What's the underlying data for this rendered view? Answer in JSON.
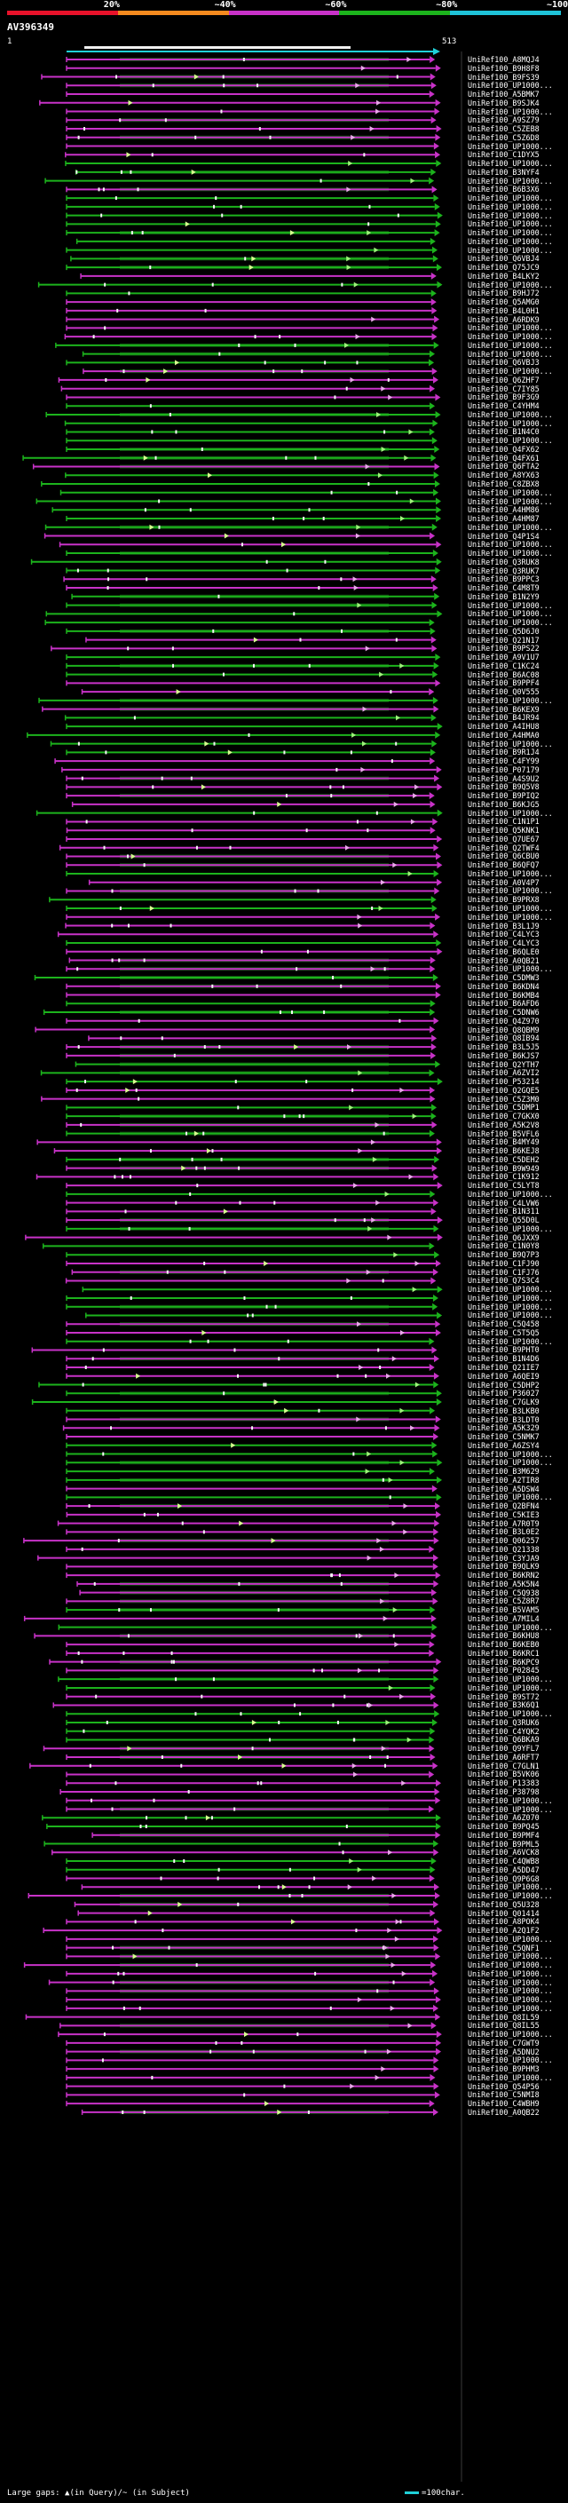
{
  "legend": {
    "segments": [
      {
        "label": "20%",
        "color": "#e8122a"
      },
      {
        "label": "~40%",
        "color": "#f58a1f"
      },
      {
        "label": "~60%",
        "color": "#c832c8"
      },
      {
        "label": "~80%",
        "color": "#1cb31c"
      },
      {
        "label": "~100%",
        "color": "#1fc3d8"
      }
    ]
  },
  "query": {
    "title": "AV396349",
    "start": "1",
    "end": "513"
  },
  "hits": [
    {
      "label": "UniRef100_A8MQJ4",
      "c": "m"
    },
    {
      "label": "UniRef100_B9H8F8",
      "c": "m"
    },
    {
      "label": "UniRef100_B9FS39",
      "c": "m"
    },
    {
      "label": "UniRef100_UP1000...",
      "c": "m"
    },
    {
      "label": "UniRef100_A5BMK7",
      "c": "m"
    },
    {
      "label": "UniRef100_B9SJK4",
      "c": "m"
    },
    {
      "label": "UniRef100_UP1000...",
      "c": "m"
    },
    {
      "label": "UniRef100_A9SZ79",
      "c": "m"
    },
    {
      "label": "UniRef100_C5ZEB8",
      "c": "m"
    },
    {
      "label": "UniRef100_C5Z6D8",
      "c": "m"
    },
    {
      "label": "UniRef100_UP1000...",
      "c": "m"
    },
    {
      "label": "UniRef100_C1DYX5",
      "c": "m"
    },
    {
      "label": "UniRef100_UP1000...",
      "c": "g"
    },
    {
      "label": "UniRef100_B3NYF4",
      "c": "g"
    },
    {
      "label": "UniRef100_UP1000...",
      "c": "g"
    },
    {
      "label": "UniRef100_B6B3X6",
      "c": "m"
    },
    {
      "label": "UniRef100_UP1000...",
      "c": "g"
    },
    {
      "label": "UniRef100_UP1000...",
      "c": "g"
    },
    {
      "label": "UniRef100_UP1000...",
      "c": "g"
    },
    {
      "label": "UniRef100_UP1000...",
      "c": "g"
    },
    {
      "label": "UniRef100_UP1000...",
      "c": "g"
    },
    {
      "label": "UniRef100_UP1000...",
      "c": "g"
    },
    {
      "label": "UniRef100_UP1000...",
      "c": "g"
    },
    {
      "label": "UniRef100_Q6VBJ4",
      "c": "g"
    },
    {
      "label": "UniRef100_Q75JC9",
      "c": "g"
    },
    {
      "label": "UniRef100_B4LKY2",
      "c": "m"
    },
    {
      "label": "UniRef100_UP1000...",
      "c": "g"
    },
    {
      "label": "UniRef100_B9HJ72",
      "c": "g"
    },
    {
      "label": "UniRef100_Q5AMG0",
      "c": "m"
    },
    {
      "label": "UniRef100_B4L0H1",
      "c": "m"
    },
    {
      "label": "UniRef100_A6RDK9",
      "c": "m"
    },
    {
      "label": "UniRef100_UP1000...",
      "c": "m"
    },
    {
      "label": "UniRef100_UP1000...",
      "c": "m"
    },
    {
      "label": "UniRef100_UP1000...",
      "c": "g"
    },
    {
      "label": "UniRef100_UP1000...",
      "c": "g"
    },
    {
      "label": "UniRef100_Q6VBJ3",
      "c": "g"
    },
    {
      "label": "UniRef100_UP1000...",
      "c": "m"
    },
    {
      "label": "UniRef100_Q6ZHF7",
      "c": "m"
    },
    {
      "label": "UniRef100_C7IY85",
      "c": "m"
    },
    {
      "label": "UniRef100_B9F3G9",
      "c": "m"
    },
    {
      "label": "UniRef100_C4YHM4",
      "c": "g"
    },
    {
      "label": "UniRef100_UP1000...",
      "c": "g"
    },
    {
      "label": "UniRef100_UP1000...",
      "c": "g"
    },
    {
      "label": "UniRef100_B1N4C0",
      "c": "g"
    },
    {
      "label": "UniRef100_UP1000...",
      "c": "g"
    },
    {
      "label": "UniRef100_Q4FX62",
      "c": "g"
    },
    {
      "label": "UniRef100_Q4FX61",
      "c": "g"
    },
    {
      "label": "UniRef100_Q6FTA2",
      "c": "m"
    },
    {
      "label": "UniRef100_A8YX63",
      "c": "g"
    },
    {
      "label": "UniRef100_C8ZBX8",
      "c": "g"
    },
    {
      "label": "UniRef100_UP1000...",
      "c": "g"
    },
    {
      "label": "UniRef100_UP1000...",
      "c": "g"
    },
    {
      "label": "UniRef100_A4HM86",
      "c": "g"
    },
    {
      "label": "UniRef100_A4HM87",
      "c": "g"
    },
    {
      "label": "UniRef100_UP1000...",
      "c": "g"
    },
    {
      "label": "UniRef100_Q4P1S4",
      "c": "m"
    },
    {
      "label": "UniRef100_UP1000...",
      "c": "m"
    },
    {
      "label": "UniRef100_UP1000...",
      "c": "g"
    },
    {
      "label": "UniRef100_Q3RUK8",
      "c": "g"
    },
    {
      "label": "UniRef100_Q3RUK7",
      "c": "g"
    },
    {
      "label": "UniRef100_B9PPC3",
      "c": "m"
    },
    {
      "label": "UniRef100_C4M8T9",
      "c": "m"
    },
    {
      "label": "UniRef100_B1N2Y9",
      "c": "g"
    },
    {
      "label": "UniRef100_UP1000...",
      "c": "g"
    },
    {
      "label": "UniRef100_UP1000...",
      "c": "g"
    },
    {
      "label": "UniRef100_UP1000...",
      "c": "g"
    },
    {
      "label": "UniRef100_Q5D6J0",
      "c": "g"
    },
    {
      "label": "UniRef100_Q21N17",
      "c": "m"
    },
    {
      "label": "UniRef100_B9PS22",
      "c": "m"
    },
    {
      "label": "UniRef100_A9V1U7",
      "c": "g"
    },
    {
      "label": "UniRef100_C1KC24",
      "c": "g"
    },
    {
      "label": "UniRef100_B6AC08",
      "c": "g"
    },
    {
      "label": "UniRef100_B9PPF4",
      "c": "m"
    },
    {
      "label": "UniRef100_Q0V555",
      "c": "m"
    },
    {
      "label": "UniRef100_UP1000...",
      "c": "g"
    },
    {
      "label": "UniRef100_B6KEX9",
      "c": "m"
    },
    {
      "label": "UniRef100_B4JR94",
      "c": "g"
    },
    {
      "label": "UniRef100_A4IHU8",
      "c": "g"
    },
    {
      "label": "UniRef100_A4HMA0",
      "c": "g"
    },
    {
      "label": "UniRef100_UP1000...",
      "c": "g"
    },
    {
      "label": "UniRef100_B9R1J4",
      "c": "g"
    },
    {
      "label": "UniRef100_C4FY99",
      "c": "m"
    },
    {
      "label": "UniRef100_P07179",
      "c": "m"
    },
    {
      "label": "UniRef100_A4S9U2",
      "c": "m"
    },
    {
      "label": "UniRef100_B9Q5V8",
      "c": "m"
    },
    {
      "label": "UniRef100_B9PIQ2",
      "c": "m"
    },
    {
      "label": "UniRef100_B6KJG5",
      "c": "m"
    },
    {
      "label": "UniRef100_UP1000...",
      "c": "g"
    },
    {
      "label": "UniRef100_C1N1P1",
      "c": "m"
    },
    {
      "label": "UniRef100_Q5KNK1",
      "c": "m"
    },
    {
      "label": "UniRef100_Q7UE67",
      "c": "m"
    },
    {
      "label": "UniRef100_Q2TWF4",
      "c": "m"
    },
    {
      "label": "UniRef100_Q6CBU0",
      "c": "m"
    },
    {
      "label": "UniRef100_B6QFQ7",
      "c": "m"
    },
    {
      "label": "UniRef100_UP1000...",
      "c": "g"
    },
    {
      "label": "UniRef100_A0V4P7",
      "c": "m"
    },
    {
      "label": "UniRef100_UP1000...",
      "c": "m"
    },
    {
      "label": "UniRef100_B9PRX8",
      "c": "g"
    },
    {
      "label": "UniRef100_UP1000...",
      "c": "g"
    },
    {
      "label": "UniRef100_UP1000...",
      "c": "m"
    },
    {
      "label": "UniRef100_B3L1J9",
      "c": "m"
    },
    {
      "label": "UniRef100_C4LYC3",
      "c": "m"
    },
    {
      "label": "UniRef100_C4LYC3",
      "c": "g"
    },
    {
      "label": "UniRef100_B6QLE0",
      "c": "m"
    },
    {
      "label": "UniRef100_A0QB21",
      "c": "m"
    },
    {
      "label": "UniRef100_UP1000...",
      "c": "m"
    },
    {
      "label": "UniRef100_C5DMW3",
      "c": "g"
    },
    {
      "label": "UniRef100_B6KDN4",
      "c": "m"
    },
    {
      "label": "UniRef100_B6KMB4",
      "c": "m"
    },
    {
      "label": "UniRef100_B6AFD6",
      "c": "g"
    },
    {
      "label": "UniRef100_C5DNW6",
      "c": "g"
    },
    {
      "label": "UniRef100_Q4Z970",
      "c": "m"
    },
    {
      "label": "UniRef100_Q8QBM9",
      "c": "m"
    },
    {
      "label": "UniRef100_Q8IB94",
      "c": "m"
    },
    {
      "label": "UniRef100_B3L5J5",
      "c": "m"
    },
    {
      "label": "UniRef100_B6KJS7",
      "c": "m"
    },
    {
      "label": "UniRef100_Q2YTH7",
      "c": "g"
    },
    {
      "label": "UniRef100_A6ZVI2",
      "c": "g"
    },
    {
      "label": "UniRef100_P53214",
      "c": "g"
    },
    {
      "label": "UniRef100_Q2GQE5",
      "c": "m"
    },
    {
      "label": "UniRef100_C5Z3M0",
      "c": "m"
    },
    {
      "label": "UniRef100_C5DMP1",
      "c": "g"
    },
    {
      "label": "UniRef100_C7GKX0",
      "c": "g"
    },
    {
      "label": "UniRef100_A5K2V8",
      "c": "m"
    },
    {
      "label": "UniRef100_B5VFL6",
      "c": "g"
    },
    {
      "label": "UniRef100_B4MY49",
      "c": "m"
    },
    {
      "label": "UniRef100_B6KEJ8",
      "c": "m"
    },
    {
      "label": "UniRef100_C5DEH2",
      "c": "g"
    },
    {
      "label": "UniRef100_B9W949",
      "c": "m"
    },
    {
      "label": "UniRef100_C1K912",
      "c": "m"
    },
    {
      "label": "UniRef100_C5LYT8",
      "c": "m"
    },
    {
      "label": "UniRef100_UP1000...",
      "c": "g"
    },
    {
      "label": "UniRef100_C4LVW6",
      "c": "m"
    },
    {
      "label": "UniRef100_B1N311",
      "c": "m"
    },
    {
      "label": "UniRef100_Q55D0L",
      "c": "m"
    },
    {
      "label": "UniRef100_UP1000...",
      "c": "g"
    },
    {
      "label": "UniRef100_Q6JXX9",
      "c": "m"
    },
    {
      "label": "UniRef100_C1N0Y8",
      "c": "g"
    },
    {
      "label": "UniRef100_B9Q7P3",
      "c": "g"
    },
    {
      "label": "UniRef100_C1FJ90",
      "c": "m"
    },
    {
      "label": "UniRef100_C1FJ76",
      "c": "m"
    },
    {
      "label": "UniRef100_Q7S3C4",
      "c": "m"
    },
    {
      "label": "UniRef100_UP1000...",
      "c": "g"
    },
    {
      "label": "UniRef100_UP1000...",
      "c": "g"
    },
    {
      "label": "UniRef100_UP1000...",
      "c": "g"
    },
    {
      "label": "UniRef100_UP1000...",
      "c": "g"
    },
    {
      "label": "UniRef100_C5Q458",
      "c": "m"
    },
    {
      "label": "UniRef100_C5T5Q5",
      "c": "m"
    },
    {
      "label": "UniRef100_UP1000...",
      "c": "g"
    },
    {
      "label": "UniRef100_B9PHT0",
      "c": "m"
    },
    {
      "label": "UniRef100_B1N4D6",
      "c": "m"
    },
    {
      "label": "UniRef100_Q21IE7",
      "c": "m"
    },
    {
      "label": "UniRef100_A6QEI9",
      "c": "m"
    },
    {
      "label": "UniRef100_C5DHP2",
      "c": "g"
    },
    {
      "label": "UniRef100_P36027",
      "c": "g"
    },
    {
      "label": "UniRef100_C7GLK9",
      "c": "g"
    },
    {
      "label": "UniRef100_B3LKB0",
      "c": "g"
    },
    {
      "label": "UniRef100_B3LDT0",
      "c": "m"
    },
    {
      "label": "UniRef100_A5K329",
      "c": "m"
    },
    {
      "label": "UniRef100_C5NMK7",
      "c": "m"
    },
    {
      "label": "UniRef100_A6ZSY4",
      "c": "g"
    },
    {
      "label": "UniRef100_UP1000...",
      "c": "g"
    },
    {
      "label": "UniRef100_UP1000...",
      "c": "g"
    },
    {
      "label": "UniRef100_B3M629",
      "c": "g"
    },
    {
      "label": "UniRef100_A2TIR8",
      "c": "g"
    },
    {
      "label": "UniRef100_A5DSW4",
      "c": "m"
    },
    {
      "label": "UniRef100_UP1000...",
      "c": "g"
    },
    {
      "label": "UniRef100_Q2BFN4",
      "c": "m"
    },
    {
      "label": "UniRef100_C5KIE3",
      "c": "m"
    },
    {
      "label": "UniRef100_A7R0T9",
      "c": "m"
    },
    {
      "label": "UniRef100_B3L0E2",
      "c": "m"
    },
    {
      "label": "UniRef100_Q06257",
      "c": "m"
    },
    {
      "label": "UniRef100_Q21338",
      "c": "m"
    },
    {
      "label": "UniRef100_C3YJA9",
      "c": "m"
    },
    {
      "label": "UniRef100_B9QLK9",
      "c": "m"
    },
    {
      "label": "UniRef100_B6KRN2",
      "c": "m"
    },
    {
      "label": "UniRef100_A5K5N4",
      "c": "m"
    },
    {
      "label": "UniRef100_C5Q938",
      "c": "m"
    },
    {
      "label": "UniRef100_C5Z8R7",
      "c": "m"
    },
    {
      "label": "UniRef100_B5VAM5",
      "c": "g"
    },
    {
      "label": "UniRef100_A7MIL4",
      "c": "m"
    },
    {
      "label": "UniRef100_UP1000...",
      "c": "g"
    },
    {
      "label": "UniRef100_B6KHU8",
      "c": "m"
    },
    {
      "label": "UniRef100_B6KEB0",
      "c": "m"
    },
    {
      "label": "UniRef100_B6KRC1",
      "c": "m"
    },
    {
      "label": "UniRef100_B6KPC9",
      "c": "m"
    },
    {
      "label": "UniRef100_P02845",
      "c": "m"
    },
    {
      "label": "UniRef100_UP1000...",
      "c": "g"
    },
    {
      "label": "UniRef100_UP1000...",
      "c": "g"
    },
    {
      "label": "UniRef100_B9ST72",
      "c": "m"
    },
    {
      "label": "UniRef100_B3K6Q1",
      "c": "m"
    },
    {
      "label": "UniRef100_UP1000...",
      "c": "g"
    },
    {
      "label": "UniRef100_Q3RUK6",
      "c": "g"
    },
    {
      "label": "UniRef100_C4YQK2",
      "c": "g"
    },
    {
      "label": "UniRef100_Q6BKA9",
      "c": "g"
    },
    {
      "label": "UniRef100_Q9YFL7",
      "c": "m"
    },
    {
      "label": "UniRef100_A6RFT7",
      "c": "m"
    },
    {
      "label": "UniRef100_C7GLN1",
      "c": "m"
    },
    {
      "label": "UniRef100_B5VK06",
      "c": "m"
    },
    {
      "label": "UniRef100_P13383",
      "c": "m"
    },
    {
      "label": "UniRef100_P38798",
      "c": "m"
    },
    {
      "label": "UniRef100_UP1000...",
      "c": "m"
    },
    {
      "label": "UniRef100_UP1000...",
      "c": "m"
    },
    {
      "label": "UniRef100_A6Z070",
      "c": "g"
    },
    {
      "label": "UniRef100_B9PQ45",
      "c": "g"
    },
    {
      "label": "UniRef100_B9PMF4",
      "c": "m"
    },
    {
      "label": "UniRef100_B9PML5",
      "c": "g"
    },
    {
      "label": "UniRef100_A6VCK8",
      "c": "m"
    },
    {
      "label": "UniRef100_C4QWB8",
      "c": "g"
    },
    {
      "label": "UniRef100_A5DD47",
      "c": "g"
    },
    {
      "label": "UniRef100_Q9P6G8",
      "c": "m"
    },
    {
      "label": "UniRef100_UP1000...",
      "c": "m"
    },
    {
      "label": "UniRef100_UP1000...",
      "c": "m"
    },
    {
      "label": "UniRef100_Q5U328",
      "c": "m"
    },
    {
      "label": "UniRef100_Q01414",
      "c": "m"
    },
    {
      "label": "UniRef100_A8POK4",
      "c": "m"
    },
    {
      "label": "UniRef100_A2Q1F2",
      "c": "m"
    },
    {
      "label": "UniRef100_UP1000...",
      "c": "m"
    },
    {
      "label": "UniRef100_C5QNF1",
      "c": "m"
    },
    {
      "label": "UniRef100_UP1000...",
      "c": "m"
    },
    {
      "label": "UniRef100_UP1000...",
      "c": "m"
    },
    {
      "label": "UniRef100_UP1000...",
      "c": "m"
    },
    {
      "label": "UniRef100_UP1000...",
      "c": "m"
    },
    {
      "label": "UniRef100_UP1000...",
      "c": "m"
    },
    {
      "label": "UniRef100_UP1000...",
      "c": "m"
    },
    {
      "label": "UniRef100_UP1000...",
      "c": "m"
    },
    {
      "label": "UniRef100_Q8IL59",
      "c": "m"
    },
    {
      "label": "UniRef100_Q8IL55",
      "c": "m"
    },
    {
      "label": "UniRef100_UP1000...",
      "c": "m"
    },
    {
      "label": "UniRef100_C7GWT9",
      "c": "m"
    },
    {
      "label": "UniRef100_A5DNU2",
      "c": "m"
    },
    {
      "label": "UniRef100_UP1000...",
      "c": "m"
    },
    {
      "label": "UniRef100_B9PHM3",
      "c": "m"
    },
    {
      "label": "UniRef100_UP1000...",
      "c": "m"
    },
    {
      "label": "UniRef100_Q54P56",
      "c": "m"
    },
    {
      "label": "UniRef100_C5NMI8",
      "c": "m"
    },
    {
      "label": "UniRef100_C4WBH9",
      "c": "m"
    },
    {
      "label": "UniRef100_A0QB22",
      "c": "m"
    }
  ],
  "footer": {
    "text": "Large gaps: ▲(in Query)/~ (in Subject)",
    "scale": "=100char."
  }
}
